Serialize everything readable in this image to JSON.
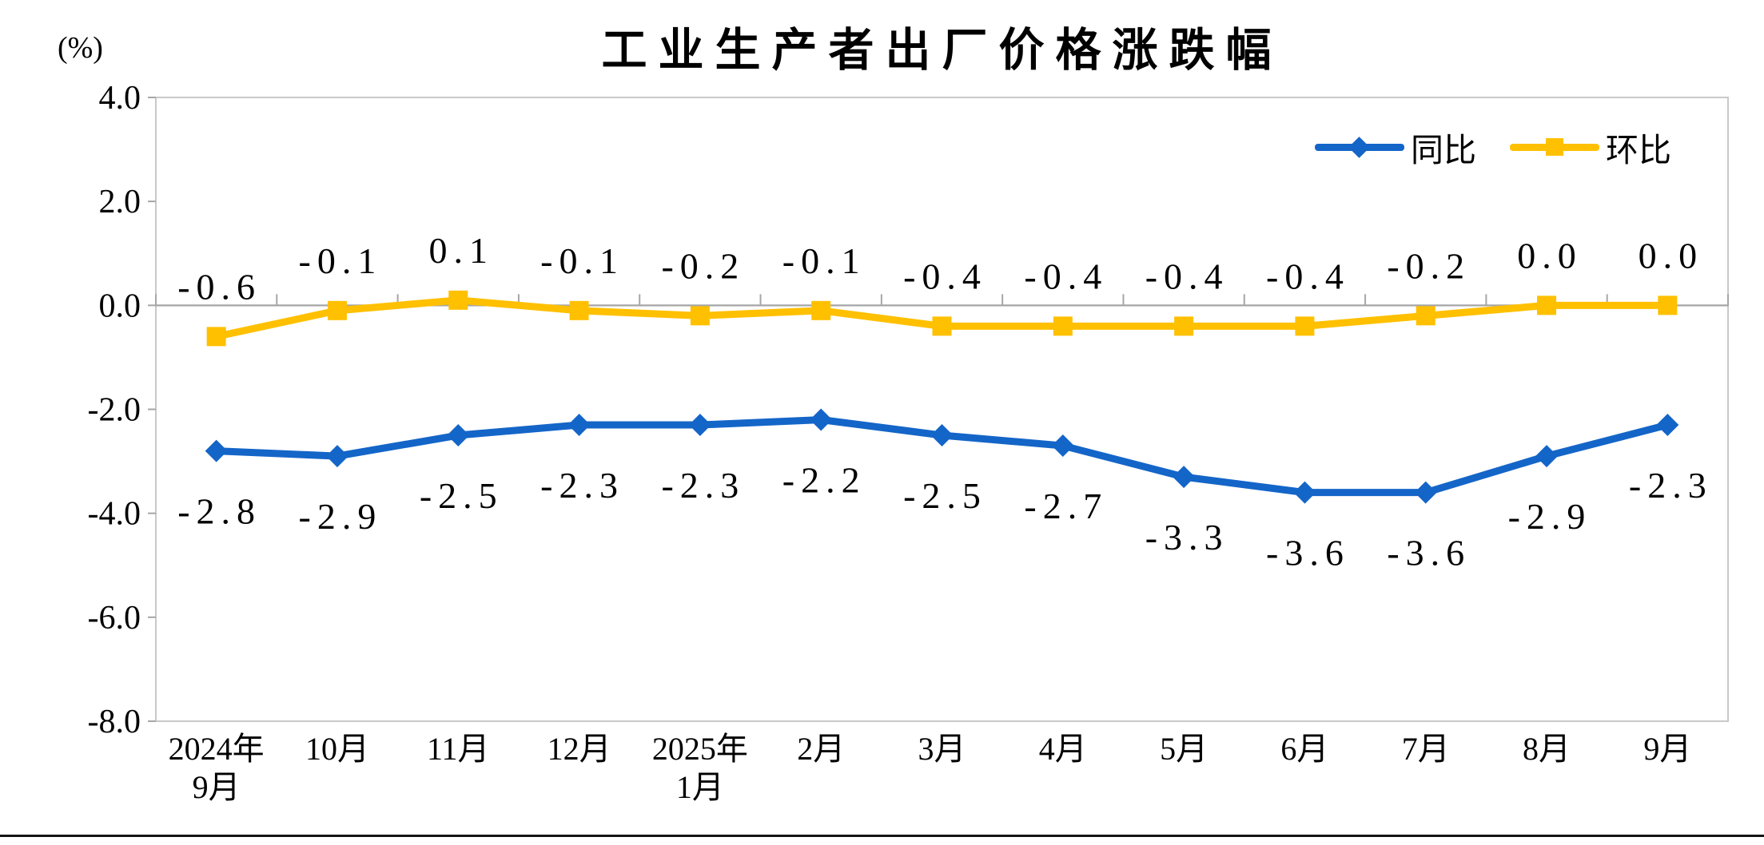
{
  "chart_data": {
    "type": "line",
    "title": "工业生产者出厂价格涨跌幅",
    "y_axis": {
      "unit": "(%)",
      "max": 4.0,
      "min": -8.0,
      "tick_step": 2.0,
      "tick_labels": [
        "4.0",
        "2.0",
        "0.0",
        "-2.0",
        "-4.0",
        "-6.0",
        "-8.0"
      ]
    },
    "categories": [
      [
        "2024年",
        "9月"
      ],
      [
        "10月"
      ],
      [
        "11月"
      ],
      [
        "12月"
      ],
      [
        "2025年",
        "1月"
      ],
      [
        "2月"
      ],
      [
        "3月"
      ],
      [
        "4月"
      ],
      [
        "5月"
      ],
      [
        "6月"
      ],
      [
        "7月"
      ],
      [
        "8月"
      ],
      [
        "9月"
      ]
    ],
    "series": [
      {
        "name": "同比",
        "color": "#1465C8",
        "marker": "diamond",
        "label_position": "below",
        "values": [
          -2.8,
          -2.9,
          -2.5,
          -2.3,
          -2.3,
          -2.2,
          -2.5,
          -2.7,
          -3.3,
          -3.6,
          -3.6,
          -2.9,
          -2.3
        ],
        "labels": [
          "-2.8",
          "-2.9",
          "-2.5",
          "-2.3",
          "-2.3",
          "-2.2",
          "-2.5",
          "-2.7",
          "-3.3",
          "-3.6",
          "-3.6",
          "-2.9",
          "-2.3"
        ]
      },
      {
        "name": "环比",
        "color": "#FFC000",
        "marker": "square",
        "label_position": "above",
        "values": [
          -0.6,
          -0.1,
          0.1,
          -0.1,
          -0.2,
          -0.1,
          -0.4,
          -0.4,
          -0.4,
          -0.4,
          -0.2,
          0.0,
          0.0
        ],
        "labels": [
          "-0.6",
          "-0.1",
          "0.1",
          "-0.1",
          "-0.2",
          "-0.1",
          "-0.4",
          "-0.4",
          "-0.4",
          "-0.4",
          "-0.2",
          "0.0",
          "0.0"
        ]
      }
    ],
    "legend": {
      "position": "top-right"
    },
    "grid": false,
    "axis_color": "#A6A6A6",
    "border_color": "#C9C9C9"
  }
}
